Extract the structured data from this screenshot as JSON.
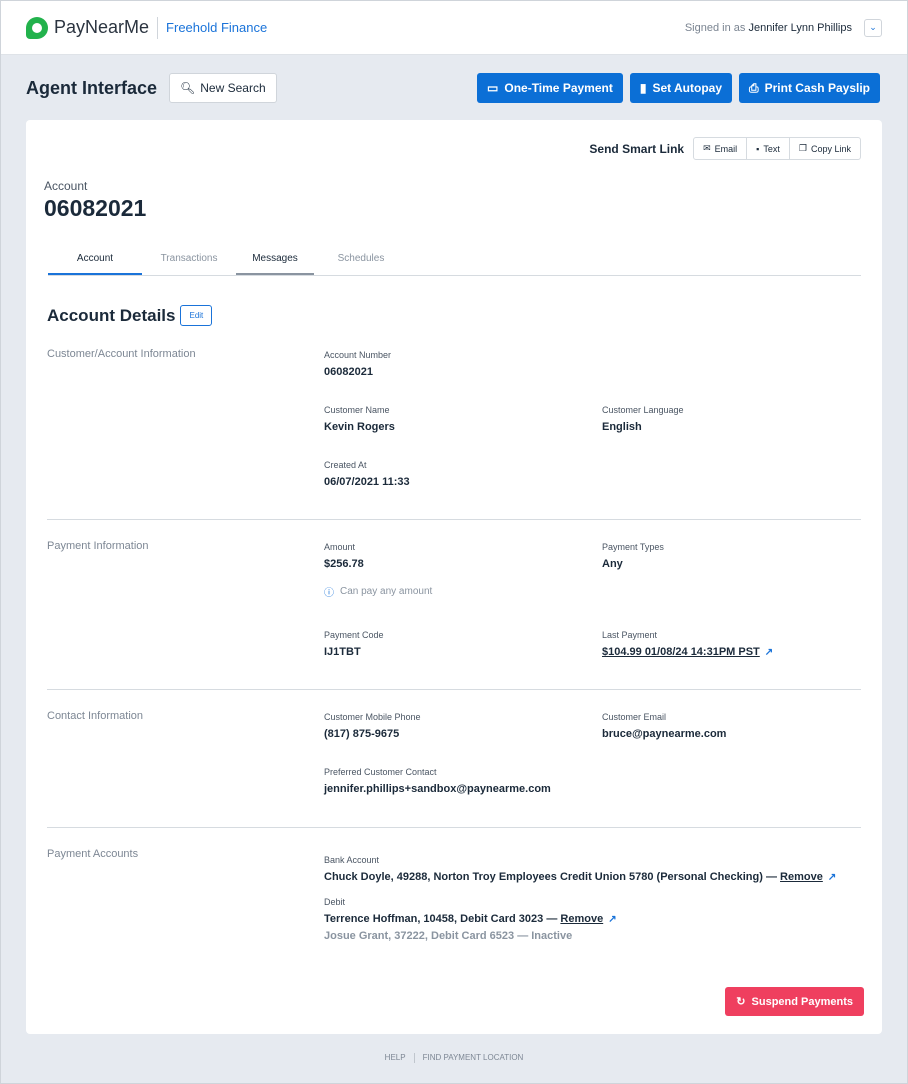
{
  "header": {
    "brand": "PayNearMe",
    "org": "Freehold Finance",
    "signed_prefix": "Signed in as",
    "user": "Jennifer Lynn Phillips"
  },
  "toolbar": {
    "title": "Agent Interface",
    "new_search": "New Search",
    "one_time": "One-Time Payment",
    "autopay": "Set Autopay",
    "payslip": "Print Cash Payslip"
  },
  "smart_link": {
    "label": "Send Smart Link",
    "email": "Email",
    "text": "Text",
    "copy": "Copy Link"
  },
  "account": {
    "label": "Account",
    "number": "06082021"
  },
  "tabs": [
    "Account",
    "Transactions",
    "Messages",
    "Schedules"
  ],
  "details": {
    "title": "Account Details",
    "edit": "Edit"
  },
  "customer": {
    "title": "Customer/Account Information",
    "account_number_label": "Account Number",
    "account_number": "06082021",
    "name_label": "Customer Name",
    "name": "Kevin Rogers",
    "language_label": "Customer Language",
    "language": "English",
    "created_label": "Created At",
    "created": "06/07/2021 11:33"
  },
  "payment": {
    "title": "Payment Information",
    "amount_label": "Amount",
    "amount": "$256.78",
    "amount_note": "Can pay any amount",
    "types_label": "Payment Types",
    "types": "Any",
    "code_label": "Payment Code",
    "code": "IJ1TBT",
    "last_label": "Last Payment",
    "last": "$104.99 01/08/24 14:31PM PST"
  },
  "contact": {
    "title": "Contact Information",
    "phone_label": "Customer Mobile Phone",
    "phone": "(817) 875-9675",
    "email_label": "Customer Email",
    "email": "bruce@paynearme.com",
    "preferred_label": "Preferred Customer Contact",
    "preferred": "jennifer.phillips+sandbox@paynearme.com"
  },
  "accounts": {
    "title": "Payment Accounts",
    "bank_label": "Bank Account",
    "bank": "Chuck Doyle, 49288, Norton Troy Employees Credit Union 5780 (Personal Checking) —",
    "debit_label": "Debit",
    "debit1": "Terrence Hoffman, 10458, Debit Card 3023 —",
    "debit2": "Josue Grant, 37222, Debit Card 6523 — Inactive",
    "remove": "Remove"
  },
  "suspend": "Suspend Payments",
  "footer": {
    "help": "HELP",
    "find": "FIND PAYMENT LOCATION"
  },
  "colors": {
    "primary": "#0b6fd6",
    "danger": "#ef3f5f",
    "brand_green": "#22b24c"
  }
}
